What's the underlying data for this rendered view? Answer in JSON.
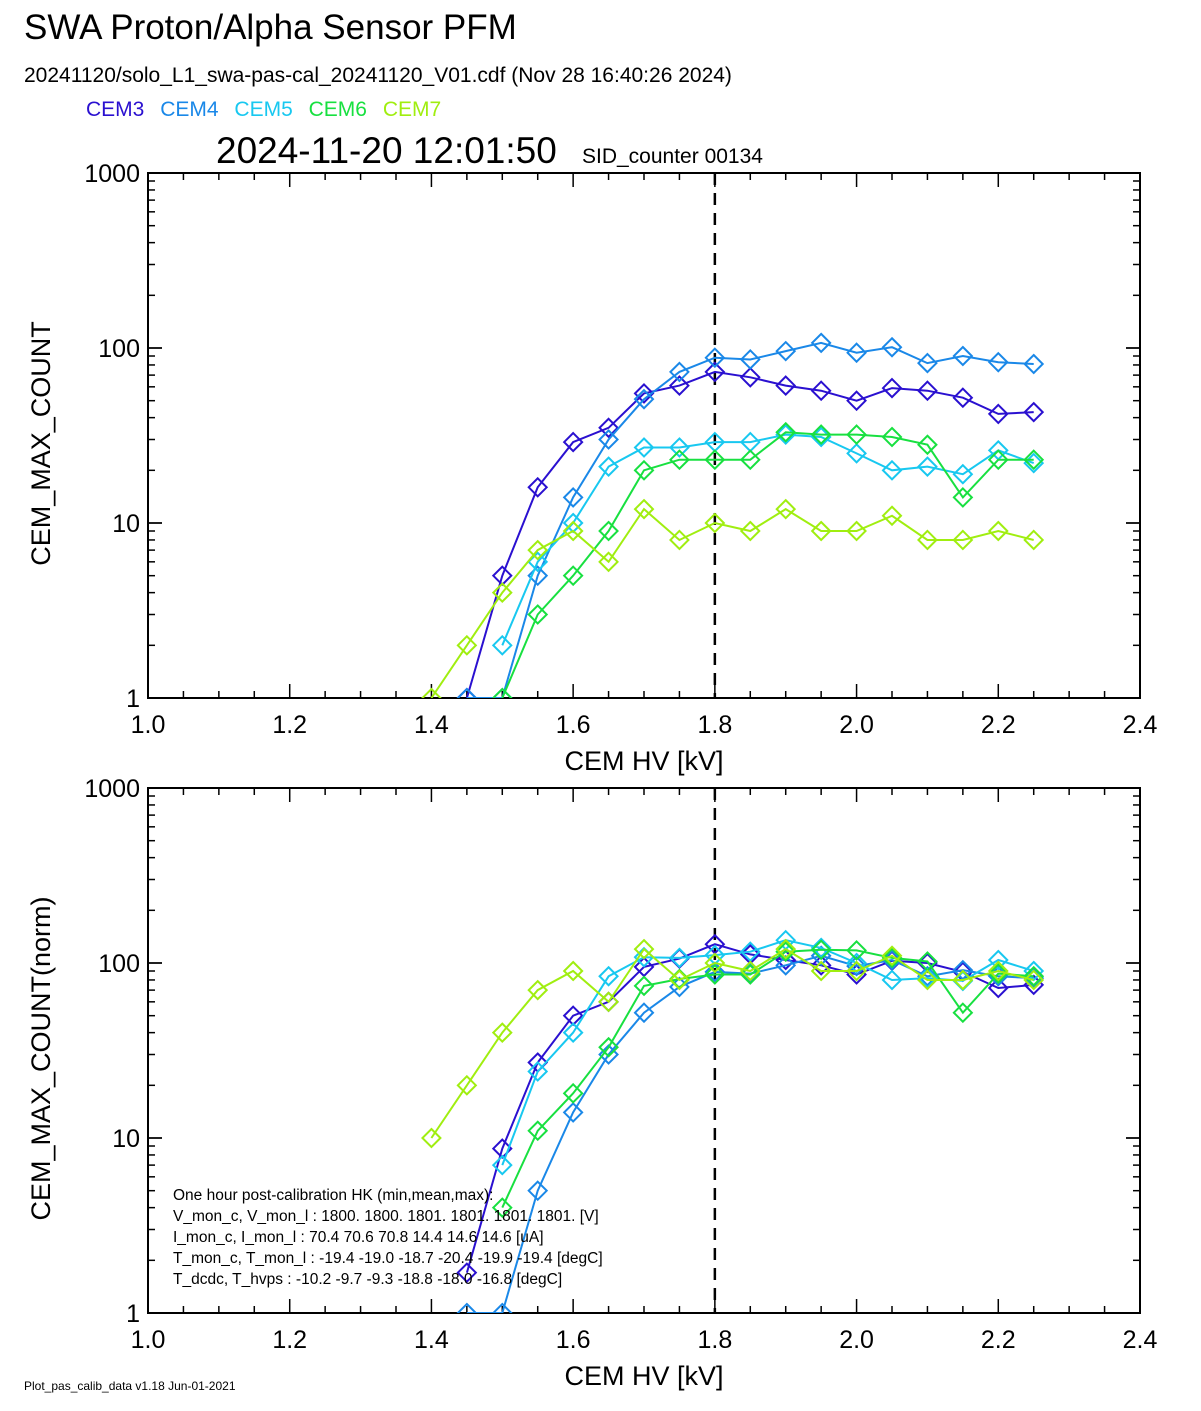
{
  "header": {
    "title": "SWA Proton/Alpha Sensor PFM",
    "subtitle": "20241120/solo_L1_swa-pas-cal_20241120_V01.cdf  (Nov 28 16:40:26 2024)",
    "timestamp": "2024-11-20 12:01:50",
    "sid_counter": "SID_counter 00134"
  },
  "legend": [
    {
      "label": "CEM3",
      "color": "#2a10d0"
    },
    {
      "label": "CEM4",
      "color": "#1a88e8"
    },
    {
      "label": "CEM5",
      "color": "#18c8f0"
    },
    {
      "label": "CEM6",
      "color": "#18e040"
    },
    {
      "label": "CEM7",
      "color": "#a0ee10"
    }
  ],
  "footer": "Plot_pas_calib_data v1.18 Jun-01-2021",
  "hk_panel": {
    "lines": [
      "One hour post-calibration HK (min,mean,max):",
      "V_mon_c, V_mon_l :    1800.  1800.  1801.      1801.  1801.  1801.  [V]",
      "I_mon_c,  I_mon_l :     70.4   70.6   70.8        14.4   14.6   14.6  [uA]",
      "T_mon_c, T_mon_l :   -19.4  -19.0  -18.7      -20.4  -19.9  -19.4  [degC]",
      "T_dcdc,    T_hvps :    -10.2   -9.7   -9.3       -18.8  -18.0  -16.8  [degC]"
    ]
  },
  "chart_data": [
    {
      "type": "line",
      "title": "",
      "xlabel": "CEM HV [kV]",
      "ylabel": "CEM_MAX_COUNT",
      "xlim": [
        1.0,
        2.4
      ],
      "ylim": [
        1,
        1000
      ],
      "yscale": "log",
      "xticks": [
        "1.0",
        "1.2",
        "1.4",
        "1.6",
        "1.8",
        "2.0",
        "2.2",
        "2.4"
      ],
      "yticks": [
        "1",
        "10",
        "100",
        "1000"
      ],
      "vline_x": 1.8,
      "x": [
        1.4,
        1.45,
        1.5,
        1.55,
        1.6,
        1.65,
        1.7,
        1.75,
        1.8,
        1.85,
        1.9,
        1.95,
        2.0,
        2.05,
        2.1,
        2.15,
        2.2,
        2.25
      ],
      "series": [
        {
          "name": "CEM3",
          "values": [
            null,
            1,
            5,
            16,
            29,
            35,
            55,
            61,
            73,
            68,
            61,
            57,
            50,
            59,
            57,
            52,
            42,
            43
          ]
        },
        {
          "name": "CEM4",
          "values": [
            null,
            1,
            1,
            5,
            14,
            30,
            51,
            73,
            88,
            86,
            96,
            107,
            94,
            101,
            82,
            90,
            83,
            81
          ]
        },
        {
          "name": "CEM5",
          "values": [
            null,
            null,
            2,
            6,
            10,
            21,
            27,
            27,
            29,
            29,
            32,
            31,
            25,
            20,
            21,
            19,
            26,
            22
          ]
        },
        {
          "name": "CEM6",
          "values": [
            null,
            null,
            1,
            3,
            5,
            9,
            20,
            23,
            23,
            23,
            33,
            32,
            32,
            31,
            28,
            14,
            23,
            23
          ]
        },
        {
          "name": "CEM7",
          "values": [
            1,
            2,
            4,
            7,
            9,
            6,
            12,
            8,
            10,
            9,
            12,
            9,
            9,
            11,
            8,
            8,
            9,
            8
          ]
        }
      ]
    },
    {
      "type": "line",
      "title": "",
      "xlabel": "CEM HV [kV]",
      "ylabel": "CEM_MAX_COUNT(norm)",
      "xlim": [
        1.0,
        2.4
      ],
      "ylim": [
        1,
        1000
      ],
      "yscale": "log",
      "xticks": [
        "1.0",
        "1.2",
        "1.4",
        "1.6",
        "1.8",
        "2.0",
        "2.2",
        "2.4"
      ],
      "yticks": [
        "1",
        "10",
        "100",
        "1000"
      ],
      "vline_x": 1.8,
      "x": [
        1.4,
        1.45,
        1.5,
        1.55,
        1.6,
        1.65,
        1.7,
        1.75,
        1.8,
        1.85,
        1.9,
        1.95,
        2.0,
        2.05,
        2.1,
        2.15,
        2.2,
        2.25
      ],
      "series": [
        {
          "name": "CEM3",
          "values": [
            null,
            1.7,
            8.7,
            27,
            50,
            60,
            95,
            106,
            128,
            112,
            104,
            97,
            86,
            103,
            100,
            89,
            72,
            75
          ]
        },
        {
          "name": "CEM4",
          "values": [
            null,
            1,
            1,
            5,
            14,
            30,
            52,
            73,
            89,
            87,
            97,
            110,
            96,
            104,
            84,
            91,
            84,
            82
          ]
        },
        {
          "name": "CEM5",
          "values": [
            null,
            null,
            7,
            24,
            40,
            84,
            108,
            107,
            111,
            116,
            135,
            122,
            100,
            80,
            82,
            79,
            104,
            90
          ]
        },
        {
          "name": "CEM6",
          "values": [
            null,
            null,
            4,
            11,
            18,
            33,
            74,
            81,
            86,
            86,
            116,
            119,
            118,
            107,
            102,
            52,
            87,
            84
          ]
        },
        {
          "name": "CEM7",
          "values": [
            10,
            20,
            40,
            70,
            90,
            60,
            120,
            80,
            100,
            90,
            120,
            90,
            90,
            110,
            80,
            80,
            90,
            80
          ]
        }
      ]
    }
  ]
}
